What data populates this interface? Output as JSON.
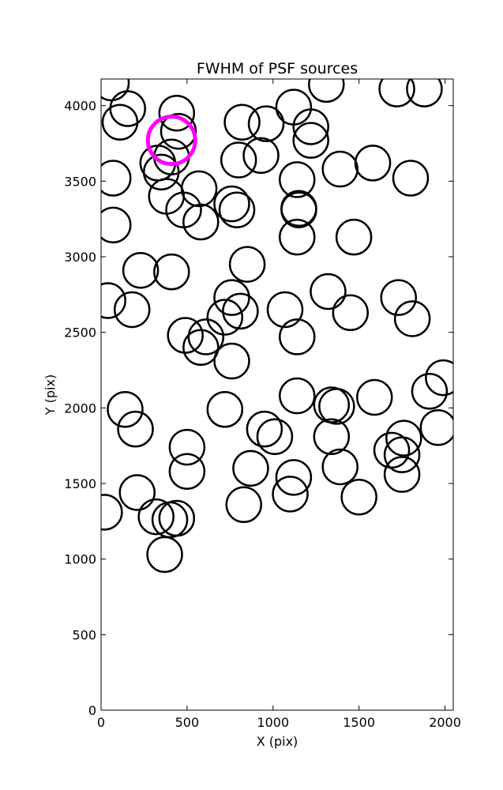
{
  "chart_data": {
    "type": "scatter",
    "title": "FWHM of PSF sources",
    "xlabel": "X (pix)",
    "ylabel": "Y (pix)",
    "xlim": [
      0,
      2048
    ],
    "ylim": [
      0,
      4176
    ],
    "xticks": [
      0,
      500,
      1000,
      1500,
      2000
    ],
    "yticks": [
      0,
      500,
      1000,
      1500,
      2000,
      2500,
      3000,
      3500,
      4000
    ],
    "grid": false,
    "series": [
      {
        "marker": "circle",
        "color": "#000000",
        "points": [
          [
            60,
            4150
          ],
          [
            155,
            3980
          ],
          [
            110,
            3890
          ],
          [
            440,
            3950
          ],
          [
            450,
            3830
          ],
          [
            410,
            3660
          ],
          [
            330,
            3620
          ],
          [
            350,
            3560
          ],
          [
            70,
            3520
          ],
          [
            380,
            3400
          ],
          [
            480,
            3310
          ],
          [
            570,
            3450
          ],
          [
            580,
            3230
          ],
          [
            760,
            3350
          ],
          [
            790,
            3310
          ],
          [
            70,
            3210
          ],
          [
            820,
            3890
          ],
          [
            960,
            3880
          ],
          [
            800,
            3640
          ],
          [
            930,
            3670
          ],
          [
            1120,
            3990
          ],
          [
            1220,
            3860
          ],
          [
            1220,
            3770
          ],
          [
            1140,
            3510
          ],
          [
            1150,
            3320
          ],
          [
            1150,
            3310
          ],
          [
            1140,
            3130
          ],
          [
            1310,
            4140
          ],
          [
            1390,
            3580
          ],
          [
            1580,
            3620
          ],
          [
            1720,
            4110
          ],
          [
            1880,
            4110
          ],
          [
            1800,
            3520
          ],
          [
            1470,
            3130
          ],
          [
            230,
            2910
          ],
          [
            410,
            2900
          ],
          [
            850,
            2950
          ],
          [
            40,
            2710
          ],
          [
            180,
            2650
          ],
          [
            760,
            2730
          ],
          [
            720,
            2600
          ],
          [
            810,
            2640
          ],
          [
            1070,
            2650
          ],
          [
            1140,
            2470
          ],
          [
            1320,
            2770
          ],
          [
            1450,
            2630
          ],
          [
            1730,
            2730
          ],
          [
            1810,
            2590
          ],
          [
            490,
            2480
          ],
          [
            580,
            2400
          ],
          [
            610,
            2470
          ],
          [
            760,
            2310
          ],
          [
            1140,
            2080
          ],
          [
            1340,
            2020
          ],
          [
            1370,
            2010
          ],
          [
            1590,
            2070
          ],
          [
            1910,
            2110
          ],
          [
            1990,
            2200
          ],
          [
            1960,
            1870
          ],
          [
            140,
            1990
          ],
          [
            200,
            1860
          ],
          [
            720,
            1990
          ],
          [
            950,
            1860
          ],
          [
            1010,
            1810
          ],
          [
            1340,
            1810
          ],
          [
            1390,
            1610
          ],
          [
            1690,
            1720
          ],
          [
            1750,
            1690
          ],
          [
            1760,
            1800
          ],
          [
            1750,
            1560
          ],
          [
            1500,
            1410
          ],
          [
            1120,
            1540
          ],
          [
            1100,
            1430
          ],
          [
            870,
            1600
          ],
          [
            830,
            1360
          ],
          [
            500,
            1740
          ],
          [
            500,
            1580
          ],
          [
            210,
            1440
          ],
          [
            320,
            1280
          ],
          [
            400,
            1260
          ],
          [
            440,
            1270
          ],
          [
            370,
            1030
          ],
          [
            20,
            1310
          ]
        ]
      },
      {
        "marker": "circle",
        "color": "#ff00ff",
        "points": [
          [
            410,
            3770
          ]
        ]
      }
    ]
  }
}
